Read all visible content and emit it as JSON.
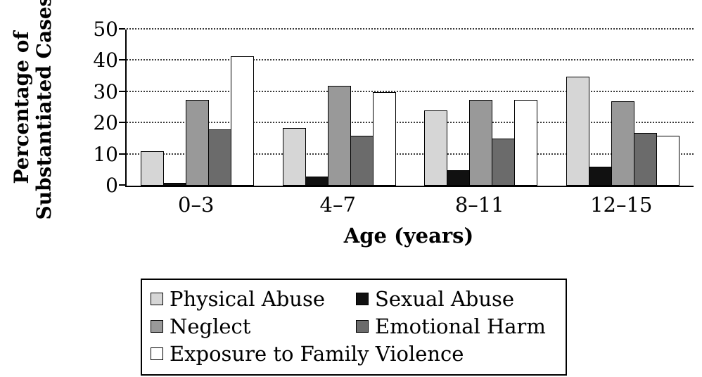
{
  "chart_data": {
    "type": "bar",
    "title": "",
    "categories": [
      "0–3",
      "4–7",
      "8–11",
      "12–15"
    ],
    "series": [
      {
        "name": "Physical Abuse",
        "color": "#d6d6d6",
        "values": [
          11,
          18.5,
          24,
          35
        ]
      },
      {
        "name": "Sexual Abuse",
        "color": "#111111",
        "values": [
          1,
          3,
          5,
          6
        ]
      },
      {
        "name": "Neglect",
        "color": "#999999",
        "values": [
          27.5,
          32,
          27.5,
          27
        ]
      },
      {
        "name": "Emotional Harm",
        "color": "#6b6b6b",
        "values": [
          18,
          16,
          15,
          17
        ]
      },
      {
        "name": "Exposure to Family Violence",
        "color": "#ffffff",
        "values": [
          41.5,
          30,
          27.5,
          16
        ]
      }
    ],
    "xlabel": "Age (years)",
    "ylabel": "Percentage of Substantiated Cases",
    "ylabel_lines": [
      "Percentage of",
      "Substantiated Cases"
    ],
    "ylim": [
      0,
      50
    ],
    "yticks": [
      0,
      10,
      20,
      30,
      40,
      50
    ],
    "grid": "dotted horizontal",
    "legend_position": "bottom",
    "legend_columns": 2
  }
}
